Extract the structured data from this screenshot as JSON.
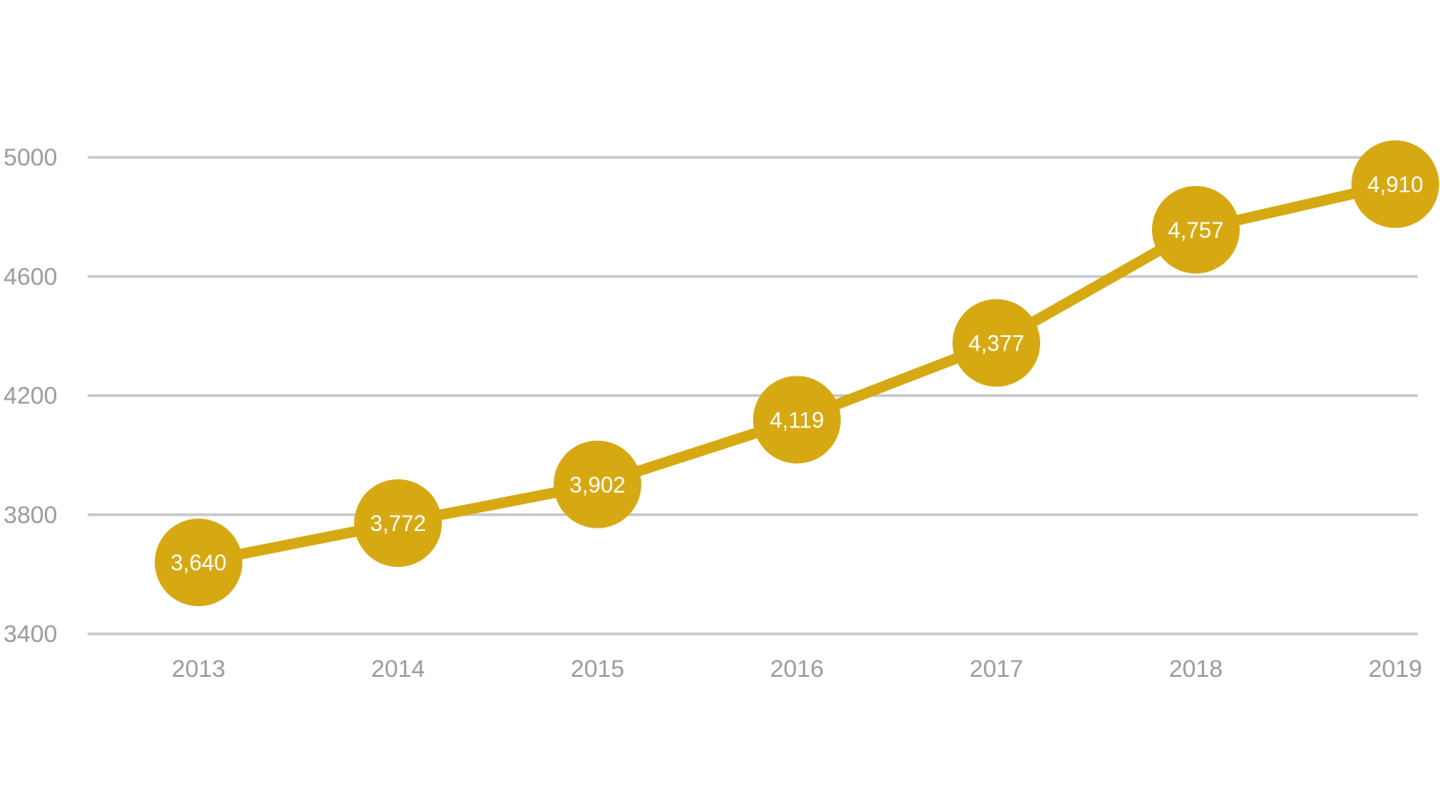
{
  "chart_data": {
    "type": "line",
    "title": "",
    "xlabel": "",
    "ylabel": "",
    "categories": [
      "2013",
      "2014",
      "2015",
      "2016",
      "2017",
      "2018",
      "2019"
    ],
    "values": [
      3640,
      3772,
      3902,
      4119,
      4377,
      4757,
      4910
    ],
    "data_labels": [
      "3,640",
      "3,772",
      "3,902",
      "4,119",
      "4,377",
      "4,757",
      "4,910"
    ],
    "ylim": [
      3400,
      5000
    ],
    "yticks": [
      3400,
      3800,
      4200,
      4600,
      5000
    ],
    "ytick_labels": [
      "3400",
      "3800",
      "4200",
      "4600",
      "5000"
    ],
    "grid": true,
    "legend": "none",
    "colors": {
      "series": "#d6a913",
      "grid": "#c8c8c8",
      "tick_text": "#9b9b9b",
      "label_text": "#ffffff"
    }
  }
}
